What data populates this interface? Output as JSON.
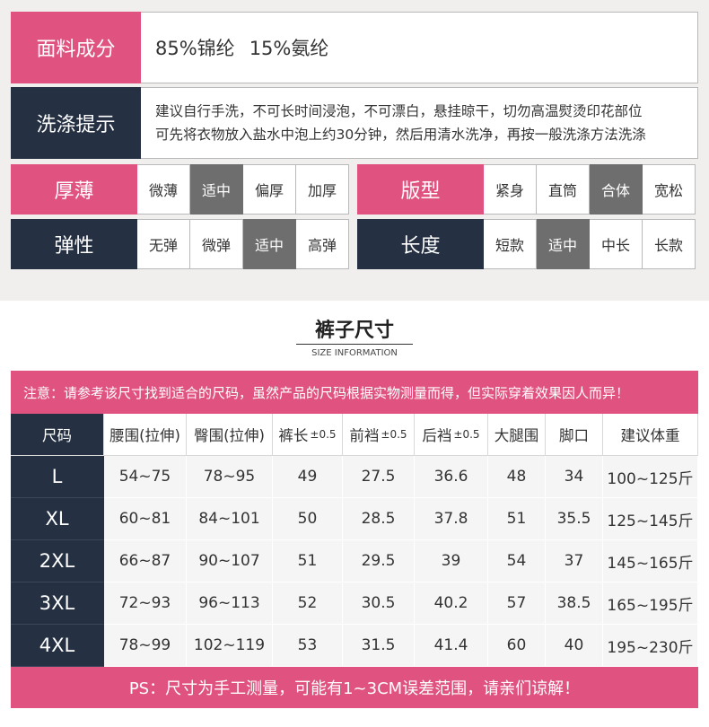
{
  "fabric": {
    "label": "面料成分",
    "items": [
      "85%锦纶",
      "15%氨纶"
    ]
  },
  "wash": {
    "label": "洗涤提示",
    "lines": [
      "建议自行手洗，不可长时间浸泡，不可漂白，悬挂晾干，切勿高温熨烫印花部位",
      "可先将衣物放入盐水中泡上约30分钟，然后用清水洗净，再按一般洗涤方法洗涤"
    ]
  },
  "thickness": {
    "label": "厚薄",
    "options": [
      "微薄",
      "适中",
      "偏厚",
      "加厚"
    ],
    "selected": 1
  },
  "style": {
    "label": "版型",
    "options": [
      "紧身",
      "直筒",
      "合体",
      "宽松"
    ],
    "selected": 2
  },
  "elastic": {
    "label": "弹性",
    "options": [
      "无弹",
      "微弹",
      "适中",
      "高弹"
    ],
    "selected": 2
  },
  "length": {
    "label": "长度",
    "options": [
      "短款",
      "适中",
      "中长",
      "长款"
    ],
    "selected": 1
  },
  "section": {
    "title": "裤子尺寸",
    "subtitle": "SIZE INFORMATION"
  },
  "notice": "注意：请参考该尺寸找到适合的尺码，虽然产品的尺码根据实物测量而得，但实际穿着效果因人而异！",
  "table": {
    "headers": [
      {
        "text": "尺码",
        "suffix": ""
      },
      {
        "text": "腰围(拉伸)",
        "suffix": ""
      },
      {
        "text": "臀围(拉伸)",
        "suffix": ""
      },
      {
        "text": "裤长",
        "suffix": "±0.5"
      },
      {
        "text": "前裆",
        "suffix": "±0.5"
      },
      {
        "text": "后裆",
        "suffix": "±0.5"
      },
      {
        "text": "大腿围",
        "suffix": ""
      },
      {
        "text": "脚口",
        "suffix": ""
      },
      {
        "text": "建议体重",
        "suffix": ""
      }
    ],
    "rows": [
      [
        "L",
        "54~75",
        "78~95",
        "49",
        "27.5",
        "36.6",
        "48",
        "34",
        "100~125斤"
      ],
      [
        "XL",
        "60~81",
        "84~101",
        "50",
        "28.5",
        "37.8",
        "51",
        "35.5",
        "125~145斤"
      ],
      [
        "2XL",
        "66~87",
        "90~107",
        "51",
        "29.5",
        "39",
        "54",
        "37",
        "145~165斤"
      ],
      [
        "3XL",
        "72~93",
        "96~113",
        "52",
        "30.5",
        "40.2",
        "57",
        "38.5",
        "165~195斤"
      ],
      [
        "4XL",
        "78~99",
        "102~119",
        "53",
        "31.5",
        "41.4",
        "60",
        "40",
        "195~230斤"
      ]
    ]
  },
  "ps": "PS：尺寸为手工测量，可能有1~3CM误差范围，请亲们谅解！",
  "colors": {
    "pink": "#e05380",
    "navy": "#253143",
    "selected": "#6e6e6e"
  }
}
